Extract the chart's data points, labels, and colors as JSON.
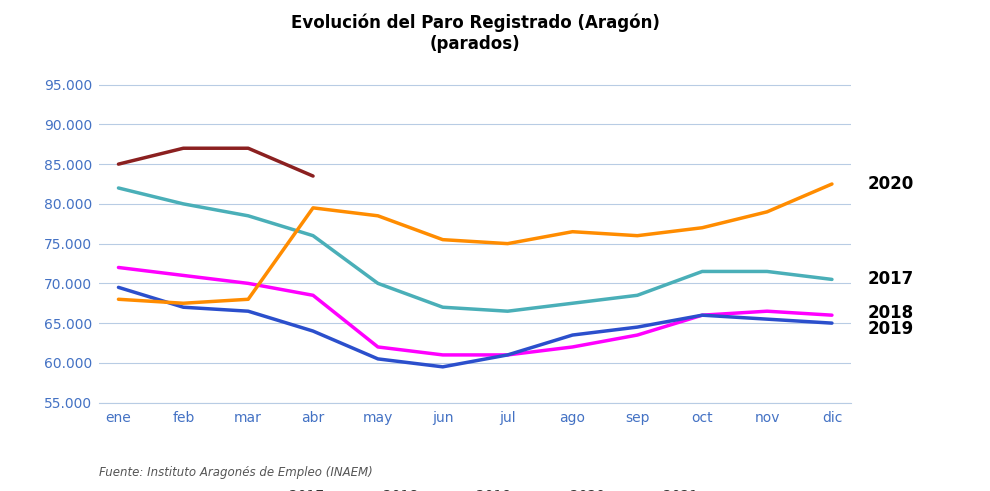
{
  "title_line1": "Evolución del Paro Registrado (Aragón)",
  "title_line2": "(parados)",
  "months": [
    "ene",
    "feb",
    "mar",
    "abr",
    "may",
    "jun",
    "jul",
    "ago",
    "sep",
    "oct",
    "nov",
    "dic"
  ],
  "series": {
    "2017": [
      82000,
      80000,
      78500,
      76000,
      70000,
      67000,
      66500,
      67500,
      68500,
      71500,
      71500,
      70500
    ],
    "2018": [
      72000,
      71000,
      70000,
      68500,
      62000,
      61000,
      61000,
      62000,
      63500,
      66000,
      66500,
      66000
    ],
    "2019": [
      69500,
      67000,
      66500,
      64000,
      60500,
      59500,
      61000,
      63500,
      64500,
      66000,
      65500,
      65000
    ],
    "2020": [
      68000,
      67500,
      68000,
      79500,
      78500,
      75500,
      75000,
      76500,
      76000,
      77000,
      79000,
      82500
    ],
    "2021": [
      85000,
      87000,
      87000,
      83500,
      null,
      null,
      null,
      null,
      null,
      null,
      null,
      null
    ]
  },
  "colors": {
    "2017": "#4AAFB8",
    "2018": "#FF00FF",
    "2019": "#2B4FCC",
    "2020": "#FF8C00",
    "2021": "#8B2020"
  },
  "ylim": [
    55000,
    97000
  ],
  "yticks": [
    55000,
    60000,
    65000,
    70000,
    75000,
    80000,
    85000,
    90000,
    95000
  ],
  "background_color": "#FFFFFF",
  "grid_color": "#B8CCE4",
  "axis_label_color": "#4472C4",
  "title_color": "#000000",
  "source_text": "Fuente: Instituto Aragonés de Empleo (INAEM)",
  "right_labels": {
    "2020": 82500,
    "2017": 70500,
    "2018": 66000,
    "2019": 65000
  },
  "right_label_offsets": {
    "2020": 0,
    "2017": 0,
    "2018": 500,
    "2019": -1500
  }
}
